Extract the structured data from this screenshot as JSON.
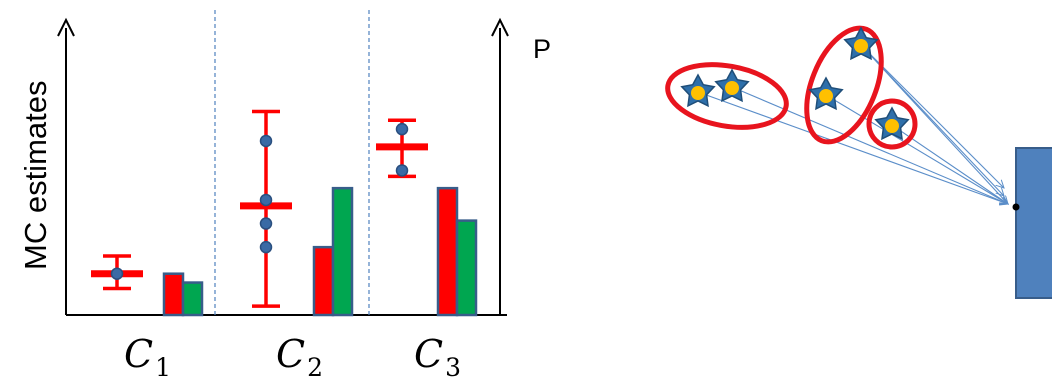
{
  "chart_data": {
    "type": "bar",
    "ylabel": "MC estimates",
    "categories": [
      {
        "symbol": "C",
        "subscript": "1"
      },
      {
        "symbol": "C",
        "subscript": "2"
      },
      {
        "symbol": "C",
        "subscript": "3"
      }
    ],
    "series": [
      {
        "color": "#ff0000",
        "values": [
          0.14,
          0.23,
          0.43
        ]
      },
      {
        "color": "#00a650",
        "values": [
          0.11,
          0.43,
          0.32
        ]
      }
    ],
    "mc_estimates": [
      {
        "mean": 0.14,
        "err_low": 0.09,
        "err_high": 0.2,
        "samples": [
          0.14
        ]
      },
      {
        "mean": 0.37,
        "err_low": 0.03,
        "err_high": 0.69,
        "samples": [
          0.59,
          0.39,
          0.31,
          0.23
        ]
      },
      {
        "mean": 0.57,
        "err_low": 0.47,
        "err_high": 0.66,
        "samples": [
          0.63,
          0.49
        ]
      }
    ],
    "ylim": [
      0,
      1
    ]
  },
  "diagram": {
    "right_axis_label": "P",
    "clusters": [
      {
        "stars": 2
      },
      {
        "stars": 2
      },
      {
        "stars": 1
      }
    ],
    "colors": {
      "ellipse": "#e8141e",
      "star_fill": "#2e6faa",
      "star_center": "#ffc000",
      "ray": "#5b8ec9",
      "receiver": "#4f81bd",
      "axis": "#000000",
      "separator": "#4f81bd",
      "marker": "#3a6aa5"
    },
    "icons": [
      "star-icon",
      "receiver-panel"
    ]
  }
}
